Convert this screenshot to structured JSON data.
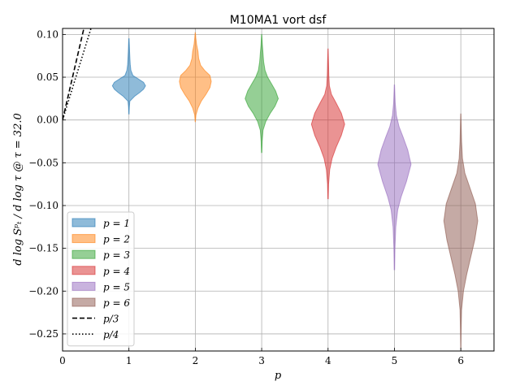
{
  "chart_data": {
    "type": "violin",
    "title": "M10MA1 vort dsf",
    "xlabel": "p",
    "ylabel": "d log Sᵖₜ / d log τ @ τ = 32.0",
    "xlim": [
      0,
      6.5
    ],
    "ylim": [
      -0.27,
      0.107
    ],
    "x_ticks": [
      0,
      1,
      2,
      3,
      4,
      5,
      6
    ],
    "y_ticks": [
      0.1,
      0.05,
      0.0,
      -0.05,
      -0.1,
      -0.15,
      -0.2,
      -0.25
    ],
    "y_tick_labels": [
      "0.10",
      "0.05",
      "0.00",
      "−0.05",
      "−0.10",
      "−0.15",
      "−0.20",
      "−0.25"
    ],
    "grid": true,
    "legend_position": "lower-left",
    "series": [
      {
        "name": "p = 1",
        "x": 1,
        "color": "#1f77b4",
        "min": 0.007,
        "max": 0.095,
        "median": 0.04,
        "density": [
          [
            0.007,
            0.002
          ],
          [
            0.015,
            0.006
          ],
          [
            0.022,
            0.014
          ],
          [
            0.028,
            0.09
          ],
          [
            0.032,
            0.16
          ],
          [
            0.036,
            0.22
          ],
          [
            0.04,
            0.25
          ],
          [
            0.044,
            0.22
          ],
          [
            0.048,
            0.14
          ],
          [
            0.052,
            0.06
          ],
          [
            0.058,
            0.03
          ],
          [
            0.065,
            0.02
          ],
          [
            0.072,
            0.015
          ],
          [
            0.08,
            0.01
          ],
          [
            0.088,
            0.006
          ],
          [
            0.095,
            0.002
          ]
        ]
      },
      {
        "name": "p = 2",
        "x": 2,
        "color": "#ff7f0e",
        "min": -0.002,
        "max": 0.102,
        "median": 0.045,
        "density": [
          [
            -0.002,
            0.002
          ],
          [
            0.006,
            0.01
          ],
          [
            0.014,
            0.04
          ],
          [
            0.022,
            0.09
          ],
          [
            0.03,
            0.16
          ],
          [
            0.038,
            0.22
          ],
          [
            0.045,
            0.24
          ],
          [
            0.052,
            0.22
          ],
          [
            0.058,
            0.14
          ],
          [
            0.064,
            0.08
          ],
          [
            0.072,
            0.05
          ],
          [
            0.08,
            0.04
          ],
          [
            0.088,
            0.02
          ],
          [
            0.096,
            0.008
          ],
          [
            0.102,
            0.002
          ]
        ]
      },
      {
        "name": "p = 3",
        "x": 3,
        "color": "#2ca02c",
        "min": -0.038,
        "max": 0.1,
        "median": 0.025,
        "density": [
          [
            -0.038,
            0.003
          ],
          [
            -0.025,
            0.008
          ],
          [
            -0.012,
            0.02
          ],
          [
            -0.002,
            0.06
          ],
          [
            0.008,
            0.13
          ],
          [
            0.016,
            0.2
          ],
          [
            0.025,
            0.25
          ],
          [
            0.034,
            0.21
          ],
          [
            0.042,
            0.15
          ],
          [
            0.05,
            0.09
          ],
          [
            0.058,
            0.05
          ],
          [
            0.068,
            0.03
          ],
          [
            0.078,
            0.02
          ],
          [
            0.088,
            0.01
          ],
          [
            0.1,
            0.002
          ]
        ]
      },
      {
        "name": "p = 4",
        "x": 4,
        "color": "#d62728",
        "min": -0.092,
        "max": 0.083,
        "median": -0.005,
        "density": [
          [
            -0.092,
            0.003
          ],
          [
            -0.075,
            0.008
          ],
          [
            -0.058,
            0.025
          ],
          [
            -0.045,
            0.06
          ],
          [
            -0.032,
            0.12
          ],
          [
            -0.018,
            0.2
          ],
          [
            -0.005,
            0.25
          ],
          [
            0.008,
            0.2
          ],
          [
            0.02,
            0.12
          ],
          [
            0.03,
            0.05
          ],
          [
            0.04,
            0.02
          ],
          [
            0.052,
            0.012
          ],
          [
            0.065,
            0.008
          ],
          [
            0.083,
            0.002
          ]
        ]
      },
      {
        "name": "p = 5",
        "x": 5,
        "color": "#9467bd",
        "min": -0.175,
        "max": 0.041,
        "median": -0.05,
        "density": [
          [
            -0.175,
            0.003
          ],
          [
            -0.15,
            0.008
          ],
          [
            -0.125,
            0.02
          ],
          [
            -0.105,
            0.05
          ],
          [
            -0.09,
            0.1
          ],
          [
            -0.072,
            0.18
          ],
          [
            -0.052,
            0.25
          ],
          [
            -0.035,
            0.2
          ],
          [
            -0.02,
            0.13
          ],
          [
            -0.008,
            0.07
          ],
          [
            0.005,
            0.03
          ],
          [
            0.02,
            0.012
          ],
          [
            0.041,
            0.002
          ]
        ]
      },
      {
        "name": "p = 6",
        "x": 6,
        "color": "#8c564b",
        "min": -0.268,
        "max": 0.007,
        "median": -0.118,
        "density": [
          [
            -0.268,
            0.002
          ],
          [
            -0.245,
            0.005
          ],
          [
            -0.222,
            0.012
          ],
          [
            -0.2,
            0.04
          ],
          [
            -0.18,
            0.09
          ],
          [
            -0.16,
            0.15
          ],
          [
            -0.14,
            0.21
          ],
          [
            -0.118,
            0.255
          ],
          [
            -0.098,
            0.22
          ],
          [
            -0.08,
            0.14
          ],
          [
            -0.062,
            0.06
          ],
          [
            -0.045,
            0.025
          ],
          [
            -0.025,
            0.012
          ],
          [
            -0.005,
            0.006
          ],
          [
            0.007,
            0.002
          ]
        ]
      }
    ],
    "reference_lines": [
      {
        "name": "p/3",
        "style": "dashed",
        "slope": 0.3333333
      },
      {
        "name": "p/4",
        "style": "dotted",
        "slope": 0.25
      }
    ]
  }
}
